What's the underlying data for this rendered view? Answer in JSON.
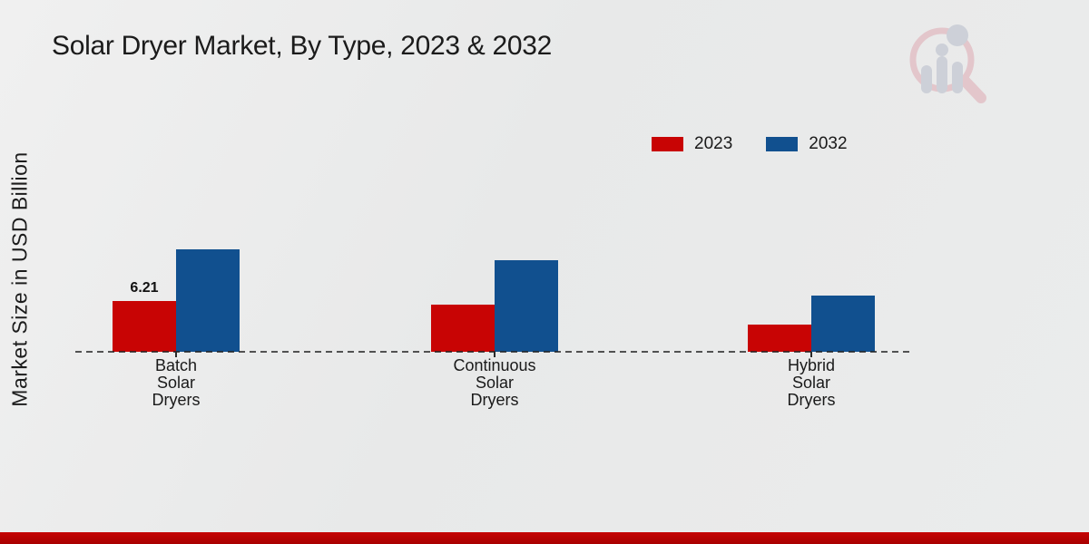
{
  "title": "Solar Dryer Market, By Type, 2023 & 2032",
  "y_axis_label": "Market Size in USD Billion",
  "logo_icon": "magnifier-bar-chart-logo",
  "colors": {
    "series_2023": "#c80404",
    "series_2032": "#11508f",
    "footer_bar": "#b50000",
    "background": "#e9eaea",
    "axis": "#1f1f1f"
  },
  "chart_data": {
    "type": "bar",
    "title": "Solar Dryer Market, By Type, 2023 & 2032",
    "xlabel": "",
    "ylabel": "Market Size in USD Billion",
    "categories": [
      "Batch Solar Dryers",
      "Continuous Solar Dryers",
      "Hybrid Solar Dryers"
    ],
    "series": [
      {
        "name": "2023",
        "color": "#c80404",
        "values": [
          6.21,
          5.8,
          3.4
        ]
      },
      {
        "name": "2032",
        "color": "#11508f",
        "values": [
          12.6,
          11.3,
          6.9
        ]
      }
    ],
    "annotations": [
      {
        "series": "2023",
        "category": "Batch Solar Dryers",
        "text": "6.21"
      }
    ],
    "ylim": [
      0,
      14
    ],
    "grid": false,
    "y_ticks_visible": false,
    "baseline_style": "dashed",
    "legend_position": "top-right"
  }
}
